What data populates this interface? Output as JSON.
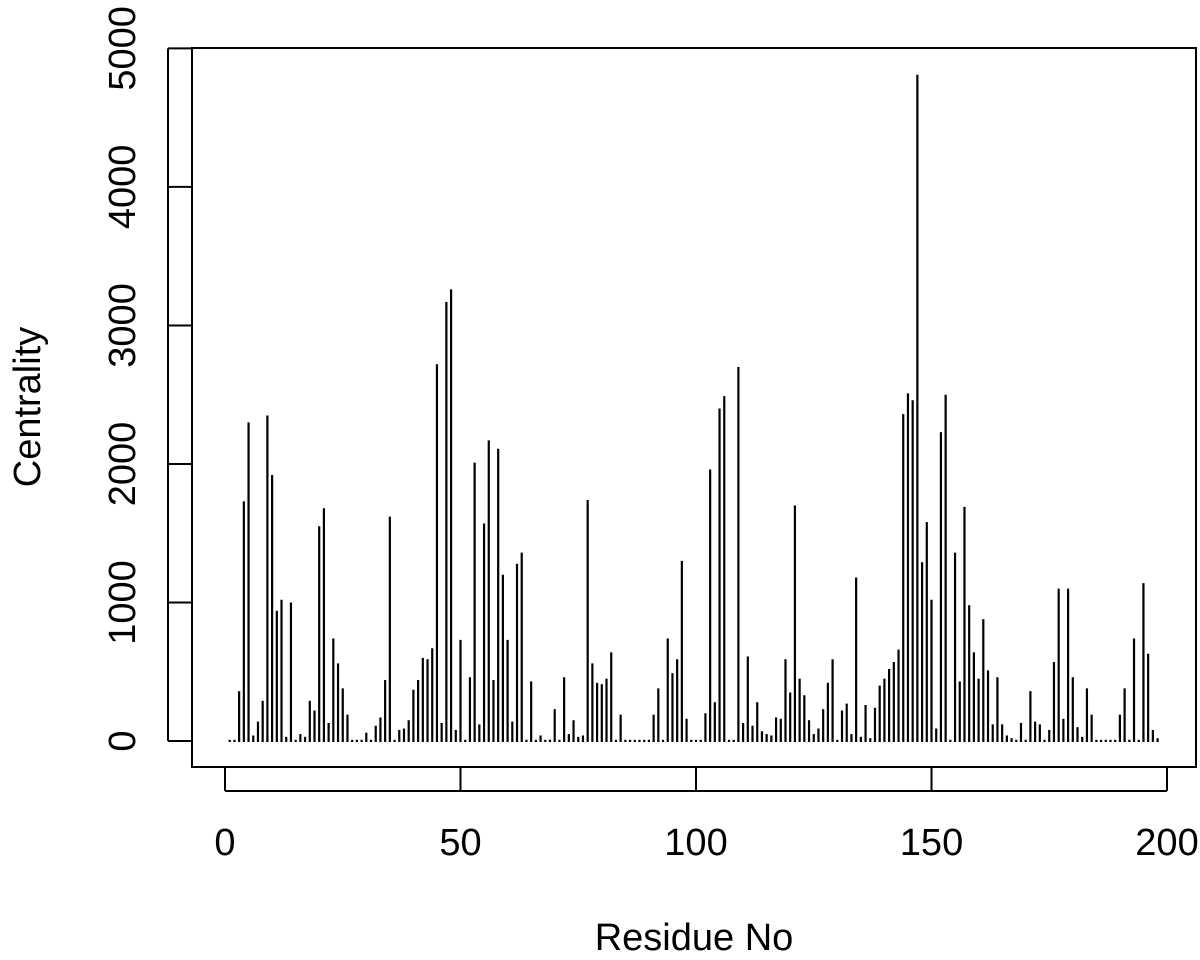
{
  "chart_data": {
    "type": "bar",
    "style": "histogram-spikes",
    "title": "",
    "xlabel": "Residue No",
    "ylabel": "Centrality",
    "xlim": [
      1,
      198
    ],
    "ylim": [
      0,
      4800
    ],
    "x_ticks": [
      0,
      50,
      100,
      150,
      200
    ],
    "y_ticks": [
      0,
      1000,
      2000,
      3000,
      4000,
      5000
    ],
    "grid": false,
    "legend": "none",
    "colors": {
      "line": "#000000",
      "background": "#ffffff"
    },
    "x": [
      1,
      2,
      3,
      4,
      5,
      6,
      7,
      8,
      9,
      10,
      11,
      12,
      13,
      14,
      15,
      16,
      17,
      18,
      19,
      20,
      21,
      22,
      23,
      24,
      25,
      26,
      27,
      28,
      29,
      30,
      31,
      32,
      33,
      34,
      35,
      36,
      37,
      38,
      39,
      40,
      41,
      42,
      43,
      44,
      45,
      46,
      47,
      48,
      49,
      50,
      51,
      52,
      53,
      54,
      55,
      56,
      57,
      58,
      59,
      60,
      61,
      62,
      63,
      64,
      65,
      66,
      67,
      68,
      69,
      70,
      71,
      72,
      73,
      74,
      75,
      76,
      77,
      78,
      79,
      80,
      81,
      82,
      83,
      84,
      85,
      86,
      87,
      88,
      89,
      90,
      91,
      92,
      93,
      94,
      95,
      96,
      97,
      98,
      99,
      100,
      101,
      102,
      103,
      104,
      105,
      106,
      107,
      108,
      109,
      110,
      111,
      112,
      113,
      114,
      115,
      116,
      117,
      118,
      119,
      120,
      121,
      122,
      123,
      124,
      125,
      126,
      127,
      128,
      129,
      130,
      131,
      132,
      133,
      134,
      135,
      136,
      137,
      138,
      139,
      140,
      141,
      142,
      143,
      144,
      145,
      146,
      147,
      148,
      149,
      150,
      151,
      152,
      153,
      154,
      155,
      156,
      157,
      158,
      159,
      160,
      161,
      162,
      163,
      164,
      165,
      166,
      167,
      168,
      169,
      170,
      171,
      172,
      173,
      174,
      175,
      176,
      177,
      178,
      179,
      180,
      181,
      182,
      183,
      184,
      185,
      186,
      187,
      188,
      189,
      190,
      191,
      192,
      193,
      194,
      195,
      196,
      197,
      198
    ],
    "values": [
      0,
      0,
      360,
      1730,
      2300,
      40,
      140,
      290,
      2350,
      1920,
      940,
      1020,
      30,
      1000,
      0,
      50,
      30,
      290,
      220,
      1550,
      1680,
      130,
      740,
      560,
      380,
      190,
      0,
      0,
      0,
      60,
      0,
      110,
      170,
      440,
      1620,
      0,
      80,
      90,
      150,
      370,
      440,
      600,
      590,
      670,
      2720,
      130,
      3170,
      3260,
      80,
      730,
      0,
      460,
      2010,
      120,
      1570,
      2170,
      440,
      2110,
      1200,
      730,
      140,
      1280,
      1360,
      0,
      430,
      0,
      40,
      0,
      10,
      230,
      0,
      460,
      50,
      150,
      30,
      40,
      1740,
      560,
      420,
      410,
      450,
      640,
      0,
      190,
      0,
      0,
      0,
      0,
      0,
      0,
      190,
      380,
      0,
      740,
      490,
      590,
      1300,
      160,
      0,
      0,
      0,
      200,
      1960,
      280,
      2400,
      2490,
      0,
      0,
      2700,
      130,
      610,
      110,
      280,
      70,
      50,
      40,
      170,
      160,
      590,
      350,
      1700,
      450,
      330,
      150,
      50,
      90,
      230,
      420,
      590,
      0,
      220,
      270,
      50,
      1180,
      30,
      260,
      20,
      240,
      400,
      450,
      520,
      570,
      660,
      2360,
      2510,
      2460,
      4810,
      1290,
      1580,
      1020,
      90,
      2230,
      2500,
      0,
      1360,
      430,
      1690,
      980,
      640,
      450,
      880,
      510,
      120,
      460,
      120,
      40,
      20,
      0,
      130,
      0,
      360,
      140,
      120,
      0,
      80,
      570,
      1100,
      160,
      1100,
      460,
      100,
      30,
      380,
      190,
      0,
      0,
      0,
      0,
      0,
      190,
      380,
      0,
      740,
      0,
      1140,
      630,
      80,
      20
    ]
  }
}
